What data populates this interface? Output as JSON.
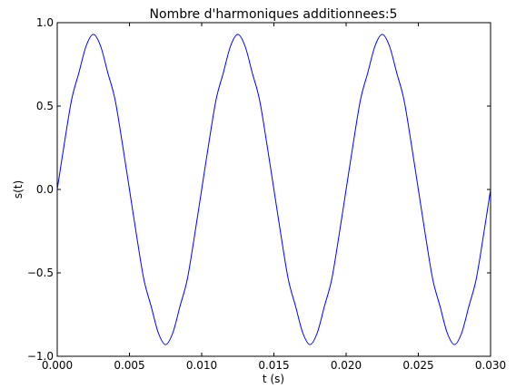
{
  "chart_data": {
    "type": "line",
    "title": "Nombre d'harmoniques additionnees:5",
    "xlabel": "t (s)",
    "ylabel": "s(t)",
    "xlim": [
      0.0,
      0.03
    ],
    "ylim": [
      -1.0,
      1.0
    ],
    "xticks": [
      0.0,
      0.005,
      0.01,
      0.015,
      0.02,
      0.025,
      0.03
    ],
    "xtick_labels": [
      "0.000",
      "0.005",
      "0.010",
      "0.015",
      "0.020",
      "0.025",
      "0.030"
    ],
    "yticks": [
      -1.0,
      -0.5,
      0.0,
      0.5,
      1.0
    ],
    "ytick_labels": [
      "−1.0",
      "−0.5",
      "0.0",
      "0.5",
      "1.0"
    ],
    "grid": false,
    "line_color": "#0000ff",
    "series": [
      {
        "x": [
          0.0,
          0.0005,
          0.001,
          0.0015,
          0.002,
          0.0025,
          0.003,
          0.0035,
          0.004,
          0.0045,
          0.005,
          0.0055,
          0.006,
          0.0065,
          0.007,
          0.0075,
          0.008,
          0.0085,
          0.009,
          0.0095,
          0.01,
          0.0105,
          0.011,
          0.0115,
          0.012,
          0.0125,
          0.013,
          0.0135,
          0.014,
          0.0145,
          0.015,
          0.0155,
          0.016,
          0.0165,
          0.017,
          0.0175,
          0.018,
          0.0185,
          0.019,
          0.0195,
          0.02,
          0.0205,
          0.021,
          0.0215,
          0.022,
          0.0225,
          0.023,
          0.0235,
          0.024,
          0.0245,
          0.025,
          0.0255,
          0.026,
          0.0265,
          0.027,
          0.0275,
          0.028,
          0.0285,
          0.029,
          0.0295,
          0.03
        ],
        "y": [
          0.0,
          0.28,
          0.54,
          0.7,
          0.86,
          0.93,
          0.86,
          0.7,
          0.54,
          0.28,
          0.0,
          -0.28,
          -0.54,
          -0.7,
          -0.86,
          -0.93,
          -0.86,
          -0.7,
          -0.54,
          -0.28,
          0.0,
          0.28,
          0.54,
          0.7,
          0.86,
          0.93,
          0.86,
          0.7,
          0.54,
          0.28,
          0.0,
          -0.28,
          -0.54,
          -0.7,
          -0.86,
          -0.93,
          -0.86,
          -0.7,
          -0.54,
          -0.28,
          0.0,
          0.28,
          0.54,
          0.7,
          0.86,
          0.93,
          0.86,
          0.7,
          0.54,
          0.28,
          0.0,
          -0.28,
          -0.54,
          -0.7,
          -0.86,
          -0.93,
          -0.86,
          -0.7,
          -0.54,
          -0.28,
          0.0
        ]
      }
    ]
  }
}
